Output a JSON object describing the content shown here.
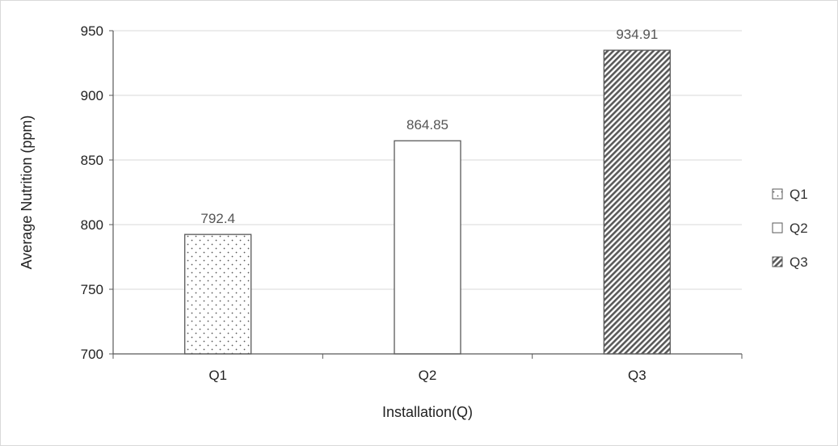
{
  "chart_data": {
    "type": "bar",
    "title": "",
    "xlabel": "Installation(Q)",
    "ylabel": "Average Nutrition (ppm)",
    "categories": [
      "Q1",
      "Q2",
      "Q3"
    ],
    "values": [
      792.4,
      864.85,
      934.91
    ],
    "data_labels": [
      "792.4",
      "864.85",
      "934.91"
    ],
    "ylim": [
      700,
      950
    ],
    "yticks": [
      700,
      750,
      800,
      850,
      900,
      950
    ],
    "grid": true,
    "legend": {
      "position": "right",
      "entries": [
        {
          "label": "Q1",
          "pattern": "dots"
        },
        {
          "label": "Q2",
          "pattern": "none"
        },
        {
          "label": "Q3",
          "pattern": "diagonal-stripes"
        }
      ]
    },
    "bar_patterns": [
      "dots",
      "none",
      "diagonal-stripes"
    ],
    "colors": {
      "bar_edge": "#595959",
      "grid": "#d9d9d9",
      "axis": "#595959",
      "stripe": "#595959",
      "dot": "#595959"
    }
  }
}
